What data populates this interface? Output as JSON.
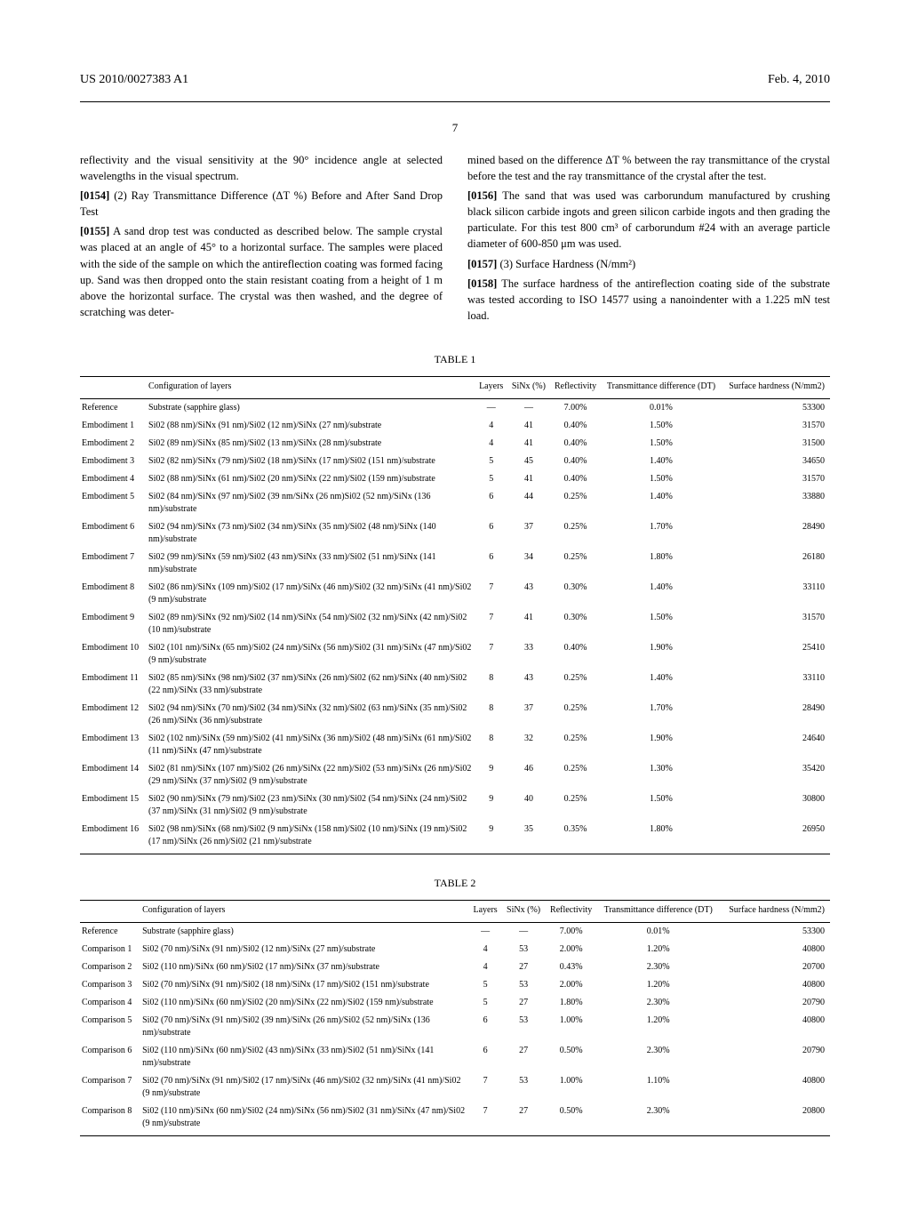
{
  "header": {
    "pub_number": "US 2010/0027383 A1",
    "date": "Feb. 4, 2010",
    "page_number": "7"
  },
  "body": {
    "left_col": {
      "p1": "reflectivity and the visual sensitivity at the 90° incidence angle at selected wavelengths in the visual spectrum.",
      "p2_num": "[0154]",
      "p2": "(2) Ray Transmittance Difference (ΔT %) Before and After Sand Drop Test",
      "p3_num": "[0155]",
      "p3": "A sand drop test was conducted as described below. The sample crystal was placed at an angle of 45° to a horizontal surface. The samples were placed with the side of the sample on which the antireflection coating was formed facing up. Sand was then dropped onto the stain resistant coating from a height of 1 m above the horizontal surface. The crystal was then washed, and the degree of scratching was deter-"
    },
    "right_col": {
      "p1": "mined based on the difference ΔT % between the ray transmittance of the crystal before the test and the ray transmittance of the crystal after the test.",
      "p2_num": "[0156]",
      "p2": "The sand that was used was carborundum manufactured by crushing black silicon carbide ingots and green silicon carbide ingots and then grading the particulate. For this test 800 cm³ of carborundum #24 with an average particle diameter of 600-850 μm was used.",
      "p3_num": "[0157]",
      "p3": "(3) Surface Hardness (N/mm²)",
      "p4_num": "[0158]",
      "p4": "The surface hardness of the antireflection coating side of the substrate was tested according to ISO 14577 using a nanoindenter with a 1.225 mN test load."
    }
  },
  "table1": {
    "title": "TABLE 1",
    "columns": [
      "",
      "Configuration of layers",
      "Layers",
      "SiNx (%)",
      "Reflectivity",
      "Transmittance difference (DT)",
      "Surface hardness (N/mm2)"
    ],
    "rows": [
      [
        "Reference",
        "Substrate (sapphire glass)",
        "—",
        "—",
        "7.00%",
        "0.01%",
        "53300"
      ],
      [
        "Embodiment 1",
        "Si02 (88 nm)/SiNx (91 nm)/Si02 (12 nm)/SiNx (27 nm)/substrate",
        "4",
        "41",
        "0.40%",
        "1.50%",
        "31570"
      ],
      [
        "Embodiment 2",
        "Si02 (89 nm)/SiNx (85 nm)/Si02 (13 nm)/SiNx (28 nm)/substrate",
        "4",
        "41",
        "0.40%",
        "1.50%",
        "31500"
      ],
      [
        "Embodiment 3",
        "Si02 (82 nm)/SiNx (79 nm)/Si02 (18 nm)/SiNx (17 nm)/Si02 (151 nm)/substrate",
        "5",
        "45",
        "0.40%",
        "1.40%",
        "34650"
      ],
      [
        "Embodiment 4",
        "Si02 (88 nm)/SiNx (61 nm)/Si02 (20 nm)/SiNx (22 nm)/Si02 (159 nm)/substrate",
        "5",
        "41",
        "0.40%",
        "1.50%",
        "31570"
      ],
      [
        "Embodiment 5",
        "Si02 (84 nm)/SiNx (97 nm)/Si02 (39 nm/SiNx (26 nm)Si02 (52 nm)/SiNx (136 nm)/substrate",
        "6",
        "44",
        "0.25%",
        "1.40%",
        "33880"
      ],
      [
        "Embodiment 6",
        "Si02 (94 nm)/SiNx (73 nm)/Si02 (34 nm)/SiNx (35 nm)/Si02 (48 nm)/SiNx (140 nm)/substrate",
        "6",
        "37",
        "0.25%",
        "1.70%",
        "28490"
      ],
      [
        "Embodiment 7",
        "Si02 (99 nm)/SiNx (59 nm)/Si02 (43 nm)/SiNx (33 nm)/Si02 (51 nm)/SiNx (141 nm)/substrate",
        "6",
        "34",
        "0.25%",
        "1.80%",
        "26180"
      ],
      [
        "Embodiment 8",
        "Si02 (86 nm)/SiNx (109 nm)/Si02 (17 nm)/SiNx (46 nm)/Si02 (32 nm)/SiNx (41 nm)/Si02 (9 nm)/substrate",
        "7",
        "43",
        "0.30%",
        "1.40%",
        "33110"
      ],
      [
        "Embodiment 9",
        "Si02 (89 nm)/SiNx (92 nm)/Si02 (14 nm)/SiNx (54 nm)/Si02 (32 nm)/SiNx (42 nm)/Si02 (10 nm)/substrate",
        "7",
        "41",
        "0.30%",
        "1.50%",
        "31570"
      ],
      [
        "Embodiment 10",
        "Si02 (101 nm)/SiNx (65 nm)/Si02 (24 nm)/SiNx (56 nm)/Si02 (31 nm)/SiNx (47 nm)/Si02 (9 nm)/substrate",
        "7",
        "33",
        "0.40%",
        "1.90%",
        "25410"
      ],
      [
        "Embodiment 11",
        "Si02 (85 nm)/SiNx (98 nm)/Si02 (37 nm)/SiNx (26 nm)/Si02 (62 nm)/SiNx (40 nm)/Si02 (22 nm)/SiNx (33 nm)/substrate",
        "8",
        "43",
        "0.25%",
        "1.40%",
        "33110"
      ],
      [
        "Embodiment 12",
        "Si02 (94 nm)/SiNx (70 nm)/Si02 (34 nm)/SiNx (32 nm)/Si02 (63 nm)/SiNx (35 nm)/Si02 (26 nm)/SiNx (36 nm)/substrate",
        "8",
        "37",
        "0.25%",
        "1.70%",
        "28490"
      ],
      [
        "Embodiment 13",
        "Si02 (102 nm)/SiNx (59 nm)/Si02 (41 nm)/SiNx (36 nm)/Si02 (48 nm)/SiNx (61 nm)/Si02 (11 nm)/SiNx (47 nm)/substrate",
        "8",
        "32",
        "0.25%",
        "1.90%",
        "24640"
      ],
      [
        "Embodiment 14",
        "Si02 (81 nm)/SiNx (107 nm)/Si02 (26 nm)/SiNx (22 nm)/Si02 (53 nm)/SiNx (26 nm)/Si02 (29 nm)/SiNx (37 nm)/Si02 (9 nm)/substrate",
        "9",
        "46",
        "0.25%",
        "1.30%",
        "35420"
      ],
      [
        "Embodiment 15",
        "Si02 (90 nm)/SiNx (79 nm)/Si02 (23 nm)/SiNx (30 nm)/Si02 (54 nm)/SiNx (24 nm)/Si02 (37 nm)/SiNx (31 nm)/Si02 (9 nm)/substrate",
        "9",
        "40",
        "0.25%",
        "1.50%",
        "30800"
      ],
      [
        "Embodiment 16",
        "Si02 (98 nm)/SiNx (68 nm)/Si02 (9 nm)/SiNx (158 nm)/Si02 (10 nm)/SiNx (19 nm)/Si02 (17 nm)/SiNx (26 nm)/Si02 (21 nm)/substrate",
        "9",
        "35",
        "0.35%",
        "1.80%",
        "26950"
      ]
    ]
  },
  "table2": {
    "title": "TABLE 2",
    "columns": [
      "",
      "Configuration of layers",
      "Layers",
      "SiNx (%)",
      "Reflectivity",
      "Transmittance difference (DT)",
      "Surface hardness (N/mm2)"
    ],
    "rows": [
      [
        "Reference",
        "Substrate (sapphire glass)",
        "—",
        "—",
        "7.00%",
        "0.01%",
        "53300"
      ],
      [
        "Comparison 1",
        "Si02 (70 nm)/SiNx (91 nm)/Si02 (12 nm)/SiNx (27 nm)/substrate",
        "4",
        "53",
        "2.00%",
        "1.20%",
        "40800"
      ],
      [
        "Comparison 2",
        "Si02 (110 nm)/SiNx (60 nm)/Si02 (17 nm)/SiNx (37 nm)/substrate",
        "4",
        "27",
        "0.43%",
        "2.30%",
        "20700"
      ],
      [
        "Comparison 3",
        "Si02 (70 nm)/SiNx (91 nm)/Si02 (18 nm)/SiNx (17 nm)/Si02 (151 nm)/substrate",
        "5",
        "53",
        "2.00%",
        "1.20%",
        "40800"
      ],
      [
        "Comparison 4",
        "Si02 (110 nm)/SiNx (60 nm)/Si02 (20 nm)/SiNx (22 nm)/Si02 (159 nm)/substrate",
        "5",
        "27",
        "1.80%",
        "2.30%",
        "20790"
      ],
      [
        "Comparison 5",
        "Si02 (70 nm)/SiNx (91 nm)/Si02 (39 nm)/SiNx (26 nm)/Si02 (52 nm)/SiNx (136 nm)/substrate",
        "6",
        "53",
        "1.00%",
        "1.20%",
        "40800"
      ],
      [
        "Comparison 6",
        "Si02 (110 nm)/SiNx (60 nm)/Si02 (43 nm)/SiNx (33 nm)/Si02 (51 nm)/SiNx (141 nm)/substrate",
        "6",
        "27",
        "0.50%",
        "2.30%",
        "20790"
      ],
      [
        "Comparison 7",
        "Si02 (70 nm)/SiNx (91 nm)/Si02 (17 nm)/SiNx (46 nm)/Si02 (32 nm)/SiNx (41 nm)/Si02 (9 nm)/substrate",
        "7",
        "53",
        "1.00%",
        "1.10%",
        "40800"
      ],
      [
        "Comparison 8",
        "Si02 (110 nm)/SiNx (60 nm)/Si02 (24 nm)/SiNx (56 nm)/Si02 (31 nm)/SiNx (47 nm)/Si02 (9 nm)/substrate",
        "7",
        "27",
        "0.50%",
        "2.30%",
        "20800"
      ]
    ]
  }
}
